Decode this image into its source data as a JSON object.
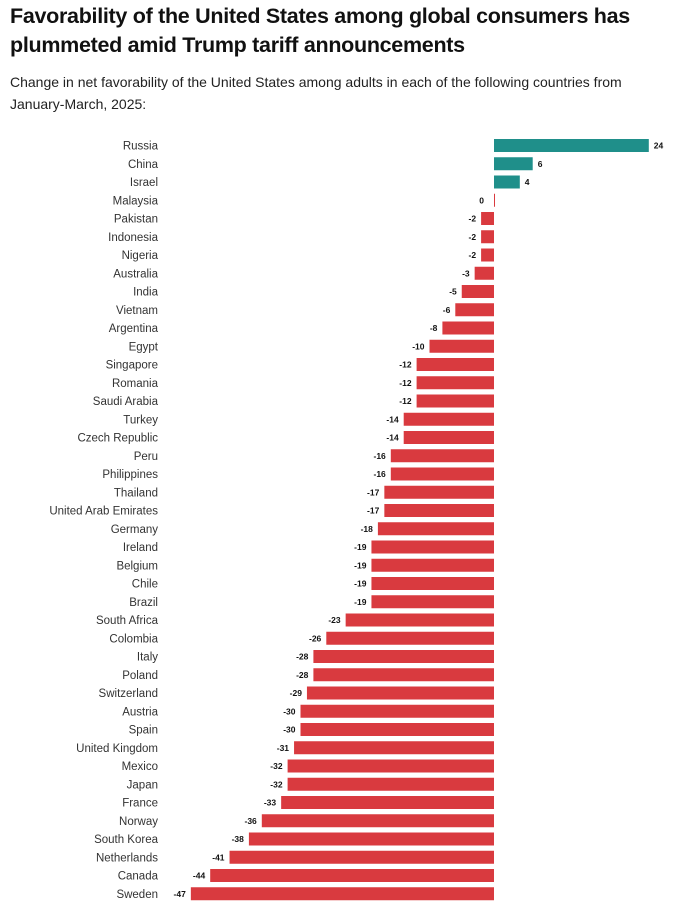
{
  "chart_data": {
    "type": "bar",
    "orientation": "horizontal",
    "title": "Favorability of the United States among global consumers has plummeted amid Trump tariff announcements",
    "subtitle": "Change in net favorability of the United States among adults in each of the following countries from January-March, 2025:",
    "categories": [
      "Russia",
      "China",
      "Israel",
      "Malaysia",
      "Pakistan",
      "Indonesia",
      "Nigeria",
      "Australia",
      "India",
      "Vietnam",
      "Argentina",
      "Egypt",
      "Singapore",
      "Romania",
      "Saudi Arabia",
      "Turkey",
      "Czech Republic",
      "Peru",
      "Philippines",
      "Thailand",
      "United Arab Emirates",
      "Germany",
      "Ireland",
      "Belgium",
      "Chile",
      "Brazil",
      "South Africa",
      "Colombia",
      "Italy",
      "Poland",
      "Switzerland",
      "Austria",
      "Spain",
      "United Kingdom",
      "Mexico",
      "Japan",
      "France",
      "Norway",
      "South Korea",
      "Netherlands",
      "Canada",
      "Sweden"
    ],
    "values": [
      24,
      6,
      4,
      0,
      -2,
      -2,
      -2,
      -3,
      -5,
      -6,
      -8,
      -10,
      -12,
      -12,
      -12,
      -14,
      -14,
      -16,
      -16,
      -17,
      -17,
      -18,
      -19,
      -19,
      -19,
      -19,
      -23,
      -26,
      -28,
      -28,
      -29,
      -30,
      -30,
      -31,
      -32,
      -32,
      -33,
      -36,
      -38,
      -41,
      -44,
      -47
    ],
    "positive_color": "#1f8f8a",
    "negative_color": "#d93a3f",
    "data_labels": true,
    "grid": false,
    "legend": "none"
  }
}
